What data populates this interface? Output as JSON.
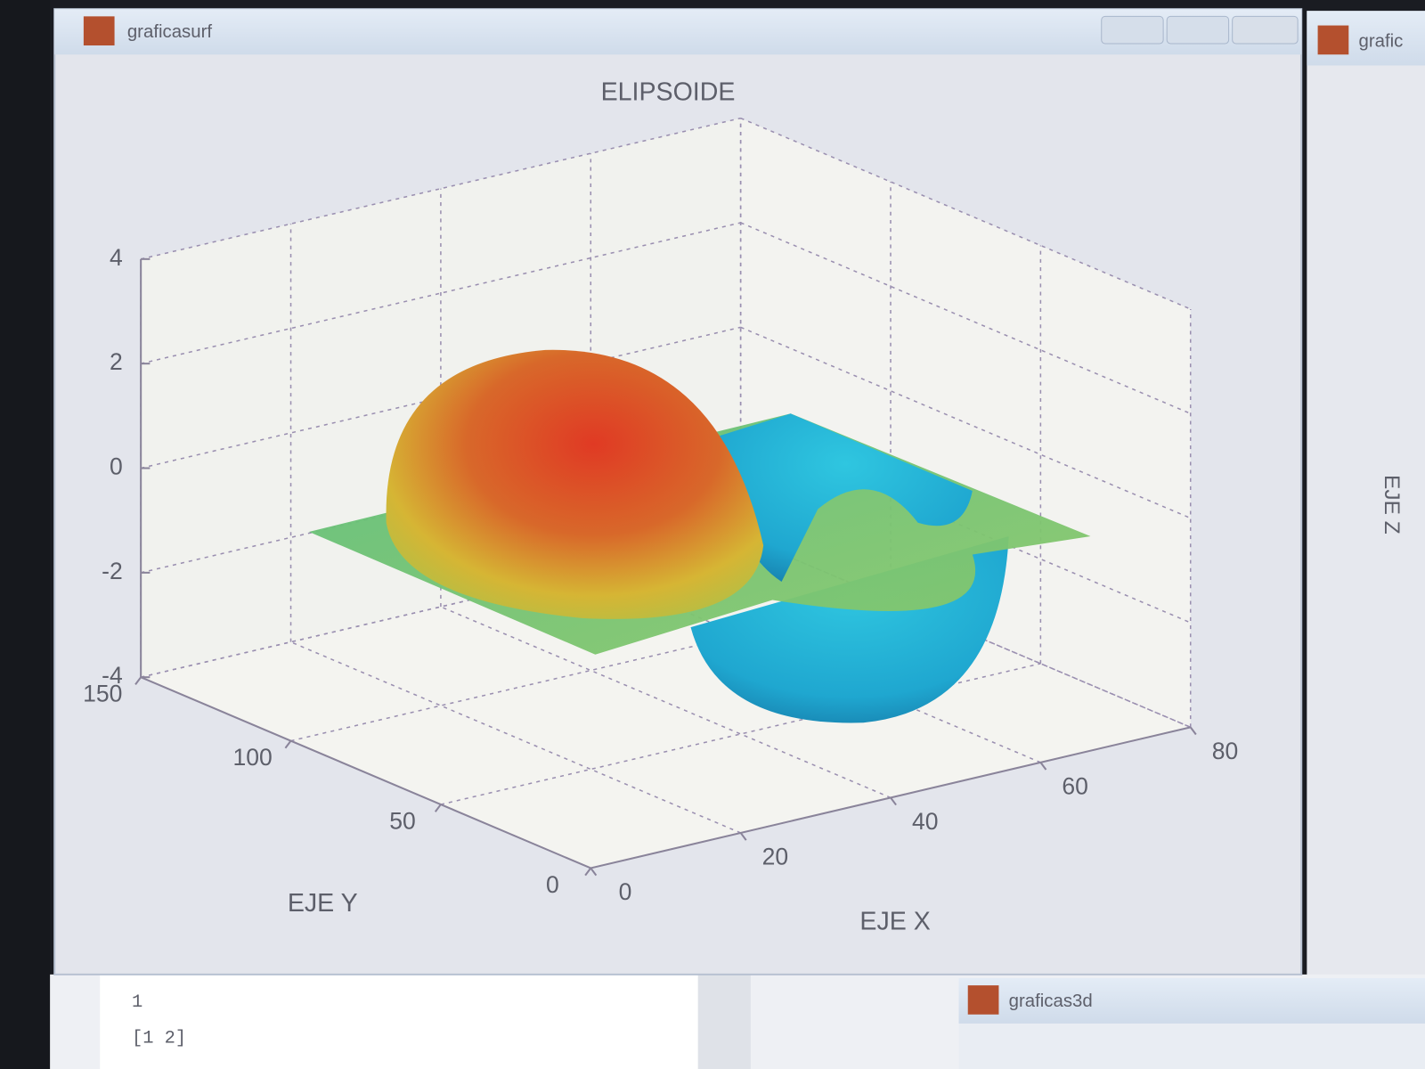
{
  "main_window": {
    "title": "graficasurf"
  },
  "side_window": {
    "title": "grafic",
    "zlabel": "EJE Z"
  },
  "console": {
    "lines": [
      "1",
      "[1  2]"
    ]
  },
  "bottom_window": {
    "title": "graficas3d"
  },
  "chart_data": {
    "type": "surface3d",
    "title": "ELIPSOIDE",
    "xlabel": "EJE X",
    "ylabel": "EJE Y",
    "xlim": [
      0,
      80
    ],
    "xticks": [
      0,
      20,
      40,
      60,
      80
    ],
    "ylim": [
      0,
      150
    ],
    "yticks": [
      0,
      50,
      100,
      150
    ],
    "zlim": [
      -4,
      4
    ],
    "zticks": [
      -4,
      -2,
      0,
      2,
      4
    ],
    "grid": true
  }
}
